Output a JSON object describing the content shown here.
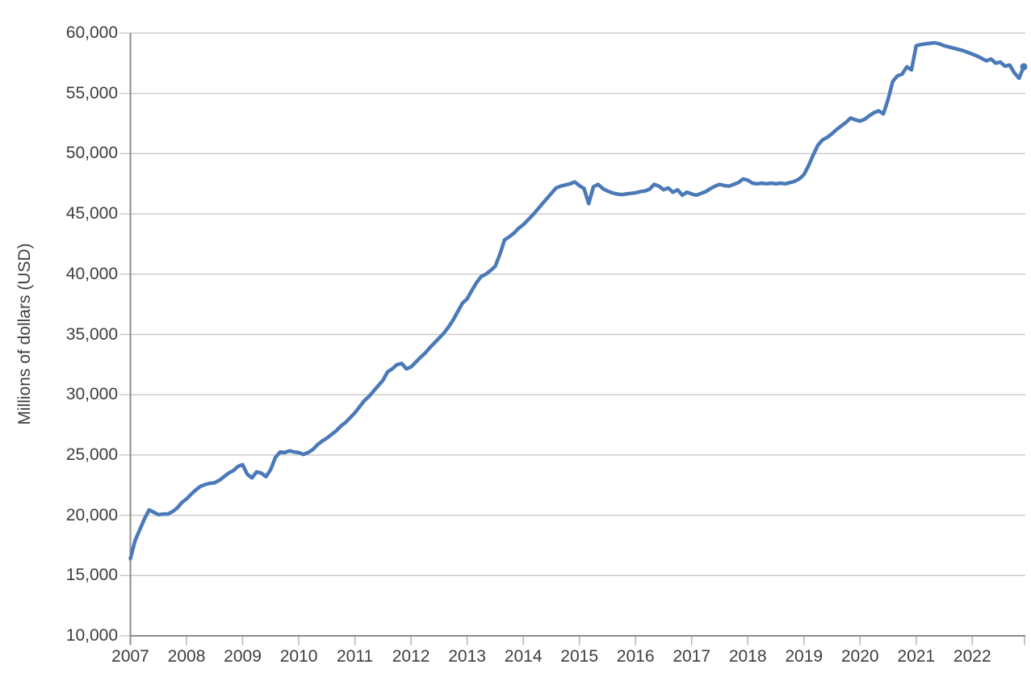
{
  "figure": {
    "title": "",
    "ylabel": "Millions of dollars (USD)"
  },
  "colors": {
    "line": "#4a79b8",
    "grid": "#cccccc",
    "axis": "#8c8c8c",
    "tick": "#b3b3b3",
    "text": "#3d3d3d",
    "background": "#ffffff"
  },
  "chart_data": {
    "type": "line",
    "title": "",
    "xlabel": "",
    "ylabel": "Millions of dollars (USD)",
    "ylim": [
      10000,
      60000
    ],
    "y_tick_interval": 5000,
    "y_ticks": [
      10000,
      15000,
      20000,
      25000,
      30000,
      35000,
      40000,
      45000,
      50000,
      55000,
      60000
    ],
    "y_tick_labels": [
      "10,000",
      "15,000",
      "20,000",
      "25,000",
      "30,000",
      "35,000",
      "40,000",
      "45,000",
      "50,000",
      "55,000",
      "60,000"
    ],
    "x_tick_labels": [
      "2007",
      "2008",
      "2009",
      "2010",
      "2011",
      "2012",
      "2013",
      "2014",
      "2015",
      "2016",
      "2017",
      "2018",
      "2019",
      "2020",
      "2021",
      "2022"
    ],
    "grid": "horizontal",
    "legend": "none",
    "end_point_marker": true,
    "series": [
      {
        "name": "Millions of dollars (USD)",
        "frequency": "monthly",
        "start": "2007-01",
        "end": "2022-12",
        "values": [
          16400,
          17900,
          18800,
          19700,
          20450,
          20250,
          20050,
          20100,
          20100,
          20300,
          20600,
          21050,
          21350,
          21750,
          22100,
          22400,
          22550,
          22650,
          22700,
          22900,
          23200,
          23500,
          23700,
          24050,
          24200,
          23400,
          23100,
          23600,
          23500,
          23200,
          23800,
          24800,
          25250,
          25200,
          25350,
          25250,
          25200,
          25050,
          25200,
          25450,
          25850,
          26150,
          26400,
          26700,
          27000,
          27400,
          27700,
          28100,
          28500,
          29000,
          29500,
          29850,
          30300,
          30750,
          31200,
          31900,
          32150,
          32500,
          32600,
          32150,
          32300,
          32700,
          33100,
          33450,
          33900,
          34300,
          34700,
          35100,
          35600,
          36200,
          36900,
          37600,
          37950,
          38650,
          39300,
          39800,
          40000,
          40300,
          40650,
          41650,
          42850,
          43100,
          43400,
          43800,
          44100,
          44500,
          44900,
          45350,
          45800,
          46250,
          46700,
          47150,
          47300,
          47400,
          47500,
          47650,
          47350,
          47100,
          45850,
          47250,
          47450,
          47100,
          46900,
          46750,
          46650,
          46600,
          46650,
          46700,
          46750,
          46850,
          46900,
          47050,
          47450,
          47300,
          47000,
          47150,
          46800,
          47000,
          46550,
          46800,
          46650,
          46550,
          46700,
          46850,
          47100,
          47300,
          47450,
          47350,
          47300,
          47450,
          47600,
          47900,
          47800,
          47550,
          47500,
          47550,
          47500,
          47550,
          47500,
          47550,
          47500,
          47600,
          47700,
          47900,
          48250,
          49000,
          49900,
          50700,
          51150,
          51350,
          51650,
          52000,
          52300,
          52600,
          52950,
          52800,
          52700,
          52850,
          53150,
          53400,
          53550,
          53300,
          54500,
          56000,
          56450,
          56600,
          57200,
          56950,
          58950,
          59050,
          59100,
          59150,
          59200,
          59100,
          58950,
          58850,
          58750,
          58650,
          58550,
          58400,
          58250,
          58100,
          57900,
          57700,
          57850,
          57500,
          57600,
          57250,
          57350,
          56700,
          56250,
          57200
        ]
      }
    ]
  }
}
